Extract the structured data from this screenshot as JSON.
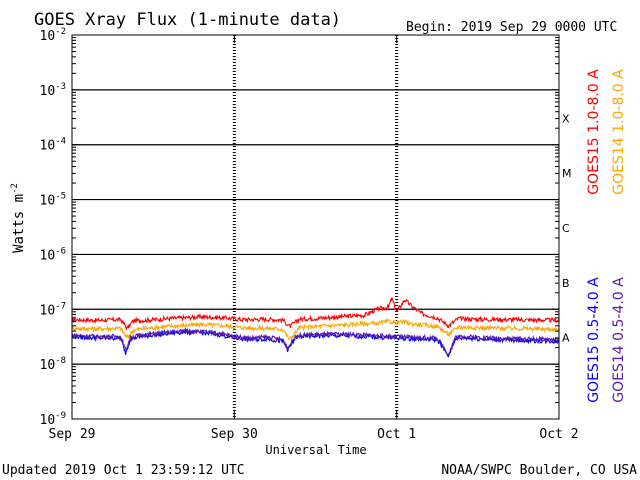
{
  "chart_data": {
    "type": "line",
    "title": "GOES Xray Flux (1-minute data)",
    "begin": "Begin:  2019 Sep 29 0000 UTC",
    "xlabel": "Universal Time",
    "ylabel": "Watts m",
    "ylabel_sup": "-2",
    "yscale": "log",
    "ylim": [
      1e-09,
      0.01
    ],
    "xlim": [
      0,
      3
    ],
    "x_unit": "days since 2019 Sep 29 0000 UTC",
    "x_ticks": [
      "Sep 29",
      "Sep 30",
      "Oct 1",
      "Oct 2"
    ],
    "y_ticks": [
      {
        "base": "10",
        "exp": "-2"
      },
      {
        "base": "10",
        "exp": "-3"
      },
      {
        "base": "10",
        "exp": "-4"
      },
      {
        "base": "10",
        "exp": "-5"
      },
      {
        "base": "10",
        "exp": "-6"
      },
      {
        "base": "10",
        "exp": "-7"
      },
      {
        "base": "10",
        "exp": "-8"
      },
      {
        "base": "10",
        "exp": "-9"
      }
    ],
    "flare_classes": [
      "X",
      "M",
      "C",
      "B",
      "A"
    ],
    "grid": true,
    "series": [
      {
        "name": "GOES15 1.0-8.0 A",
        "color": "#ff0000",
        "x": [
          0,
          0.15,
          0.3,
          0.34,
          0.38,
          0.45,
          0.6,
          0.8,
          0.95,
          1.05,
          1.2,
          1.3,
          1.34,
          1.4,
          1.55,
          1.7,
          1.8,
          1.88,
          1.95,
          1.97,
          2.0,
          2.05,
          2.1,
          2.15,
          2.25,
          2.32,
          2.38,
          2.5,
          2.7,
          2.85,
          3.0
        ],
        "y": [
          6.5e-08,
          6.3e-08,
          6.5e-08,
          4.5e-08,
          6.2e-08,
          6.3e-08,
          6.8e-08,
          7.3e-08,
          7e-08,
          6.5e-08,
          6.6e-08,
          6.4e-08,
          4.8e-08,
          6.6e-08,
          7e-08,
          7.5e-08,
          7.8e-08,
          1e-07,
          1.1e-07,
          1.6e-07,
          9e-08,
          1.5e-07,
          1.1e-07,
          8.5e-08,
          7e-08,
          5e-08,
          6.8e-08,
          6.6e-08,
          6.5e-08,
          6.4e-08,
          6.3e-08
        ]
      },
      {
        "name": "GOES14 1.0-8.0 A",
        "color": "#ffa500",
        "x": [
          0,
          0.15,
          0.3,
          0.34,
          0.38,
          0.45,
          0.6,
          0.8,
          0.95,
          1.05,
          1.2,
          1.3,
          1.34,
          1.4,
          1.55,
          1.7,
          1.8,
          1.88,
          1.95,
          2.0,
          2.05,
          2.1,
          2.25,
          2.32,
          2.38,
          2.5,
          2.7,
          2.85,
          3.0
        ],
        "y": [
          4.5e-08,
          4.4e-08,
          4.5e-08,
          3e-08,
          4.2e-08,
          4.5e-08,
          4.9e-08,
          5.3e-08,
          5e-08,
          4.6e-08,
          4.5e-08,
          4.3e-08,
          2.8e-08,
          4.6e-08,
          5e-08,
          5.2e-08,
          5.5e-08,
          5.5e-08,
          6e-08,
          5.8e-08,
          5.9e-08,
          5.4e-08,
          4.9e-08,
          3.5e-08,
          4.8e-08,
          4.6e-08,
          4.5e-08,
          4.4e-08,
          4.3e-08
        ]
      },
      {
        "name": "GOES15 0.5-4.0 A",
        "color": "#0000ff",
        "x": [
          0,
          0.15,
          0.3,
          0.33,
          0.36,
          0.4,
          0.5,
          0.7,
          0.9,
          1.0,
          1.1,
          1.2,
          1.3,
          1.33,
          1.38,
          1.5,
          1.7,
          1.9,
          2.0,
          2.1,
          2.25,
          2.32,
          2.36,
          2.42,
          2.6,
          2.8,
          3.0
        ],
        "y": [
          3.2e-08,
          3e-08,
          3e-08,
          1.6e-08,
          2.9e-08,
          3.1e-08,
          3.4e-08,
          3.9e-08,
          3.5e-08,
          3e-08,
          2.8e-08,
          2.9e-08,
          2.6e-08,
          1.8e-08,
          3.1e-08,
          3.3e-08,
          3.3e-08,
          3.1e-08,
          3e-08,
          2.9e-08,
          2.8e-08,
          1.4e-08,
          2.9e-08,
          3e-08,
          2.8e-08,
          2.7e-08,
          2.6e-08
        ]
      },
      {
        "name": "GOES14 0.5-4.0 A",
        "color": "#5a1aa8",
        "x": [
          0,
          0.15,
          0.3,
          0.33,
          0.36,
          0.4,
          0.5,
          0.7,
          0.9,
          1.0,
          1.1,
          1.2,
          1.3,
          1.33,
          1.38,
          1.5,
          1.7,
          1.9,
          2.0,
          2.1,
          2.25,
          2.32,
          2.36,
          2.42,
          2.6,
          2.8,
          3.0
        ],
        "y": [
          3.4e-08,
          3.2e-08,
          3.2e-08,
          1.8e-08,
          3.1e-08,
          3.3e-08,
          3.6e-08,
          4.1e-08,
          3.7e-08,
          3.2e-08,
          3e-08,
          3.1e-08,
          2.8e-08,
          2e-08,
          3.3e-08,
          3.5e-08,
          3.5e-08,
          3.3e-08,
          3.2e-08,
          3.1e-08,
          3e-08,
          1.5e-08,
          3.1e-08,
          3.2e-08,
          3e-08,
          2.9e-08,
          2.8e-08
        ]
      }
    ]
  },
  "footer": {
    "updated": "Updated 2019 Oct  1 23:59:12 UTC",
    "credit": "NOAA/SWPC Boulder, CO USA"
  }
}
